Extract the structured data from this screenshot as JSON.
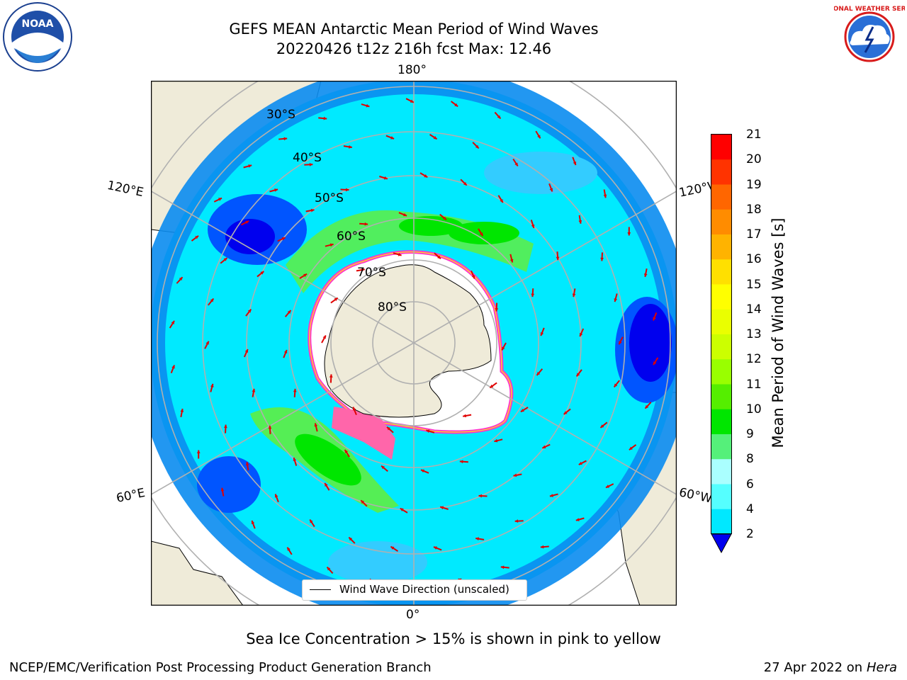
{
  "header": {
    "title_line1": "GEFS MEAN Antarctic Mean Period of Wind Waves",
    "title_line2": "20220426 t12z 216h fcst   Max: 12.46"
  },
  "map": {
    "longitude_labels": {
      "top": "180°",
      "bottom": "0°",
      "left_upper": "120°E",
      "left_lower": "60°E",
      "right_upper": "120°W",
      "right_lower": "60°W"
    },
    "latitude_labels": [
      "30°S",
      "40°S",
      "50°S",
      "60°S",
      "70°S",
      "80°S"
    ],
    "legend_label": "Wind Wave Direction (unscaled)"
  },
  "colorbar": {
    "label": "Mean Period of Wind Waves [s]",
    "ticks": [
      "21",
      "20",
      "19",
      "18",
      "17",
      "16",
      "15",
      "14",
      "13",
      "12",
      "11",
      "10",
      "9",
      "8",
      "6",
      "4",
      "2"
    ],
    "colors": [
      "#ff0000",
      "#ff3300",
      "#ff6600",
      "#ff8c00",
      "#ffb300",
      "#ffe000",
      "#ffff00",
      "#eaff00",
      "#ccff00",
      "#99ff00",
      "#55ee00",
      "#00e600",
      "#55f07a",
      "#aaffff",
      "#55ffff",
      "#00e8ff",
      "#00b0ff",
      "#0055ff",
      "#0000ee"
    ]
  },
  "notes": {
    "sea_ice": "Sea Ice Concentration > 15% is shown in pink to yellow",
    "branch": "NCEP/EMC/Verification Post Processing Product Generation Branch",
    "date_prefix": "27 Apr 2022 on ",
    "machine": "Hera"
  },
  "logos": {
    "left_text": "NOAA",
    "left_ring": "NATIONAL OCEANIC AND ATMOSPHERIC ADMINISTRATION · U.S. DEPARTMENT OF COMMERCE",
    "right_ring": "NATIONAL WEATHER SERVICE"
  }
}
